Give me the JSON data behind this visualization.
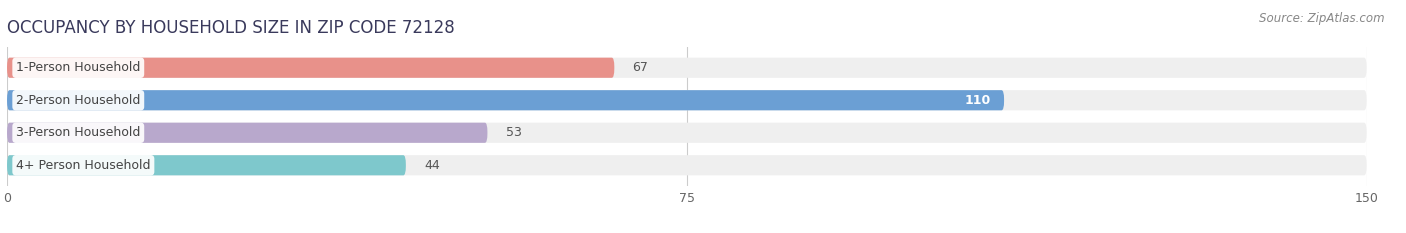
{
  "title": "OCCUPANCY BY HOUSEHOLD SIZE IN ZIP CODE 72128",
  "source": "Source: ZipAtlas.com",
  "categories": [
    "1-Person Household",
    "2-Person Household",
    "3-Person Household",
    "4+ Person Household"
  ],
  "values": [
    67,
    110,
    53,
    44
  ],
  "bar_colors": [
    "#E8918A",
    "#6B9FD4",
    "#B8A8CC",
    "#7EC8CC"
  ],
  "bg_bar_color": "#EFEFEF",
  "label_bg_color": "#FFFFFF",
  "xlim": [
    0,
    150
  ],
  "xticks": [
    0,
    75,
    150
  ],
  "title_fontsize": 12,
  "label_fontsize": 9,
  "value_fontsize": 9,
  "source_fontsize": 8.5,
  "figsize": [
    14.06,
    2.33
  ],
  "dpi": 100,
  "fig_bg": "#FFFFFF"
}
